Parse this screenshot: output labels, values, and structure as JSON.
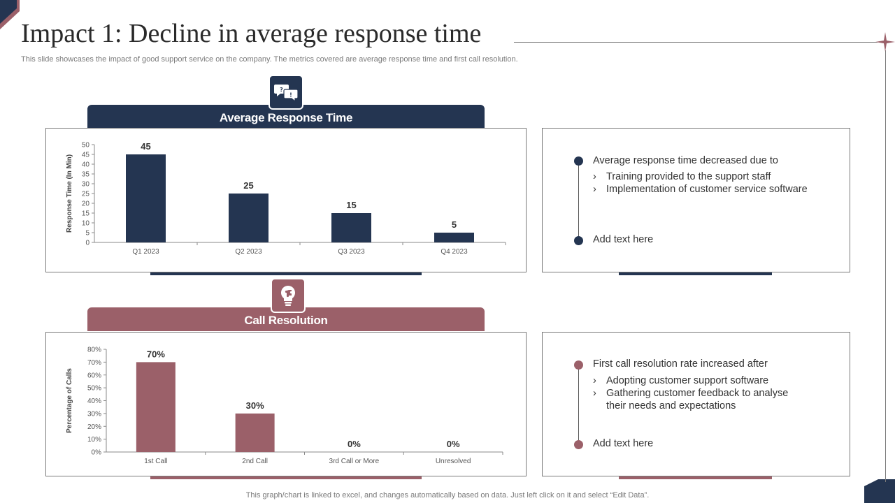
{
  "title": "Impact 1: Decline in average response time",
  "subtitle": "This slide showcases the impact of good support service on the company. The metrics covered are average response time and first call resolution.",
  "colors": {
    "navy": "#243551",
    "rose": "#9b6069",
    "text": "#333333",
    "muted": "#7a7a7a"
  },
  "sections": {
    "response": {
      "header": "Average Response Time",
      "icon": "chat-bubbles-icon",
      "bullets": {
        "main": "Average response time decreased due to",
        "subs": [
          "Training provided to the support staff",
          "Implementation of customer service software"
        ],
        "extra": "Add text here"
      }
    },
    "resolution": {
      "header": "Call Resolution",
      "icon": "lightbulb-puzzle-icon",
      "bullets": {
        "main": "First call resolution rate increased after",
        "subs": [
          "Adopting customer support software",
          "Gathering customer feedback to analyse their needs and expectations"
        ],
        "extra": "Add text here"
      }
    }
  },
  "chart_data": [
    {
      "type": "bar",
      "title": "Average Response Time",
      "categories": [
        "Q1 2023",
        "Q2 2023",
        "Q3 2023",
        "Q4 2023"
      ],
      "values": [
        45,
        25,
        15,
        5
      ],
      "data_labels": [
        "45",
        "25",
        "15",
        "5"
      ],
      "xlabel": "",
      "ylabel": "Response Time  (In Min)",
      "ylim": [
        0,
        50
      ],
      "yticks": [
        0,
        5,
        10,
        15,
        20,
        25,
        30,
        35,
        40,
        45,
        50
      ],
      "ytick_labels": [
        "0",
        "5",
        "10",
        "15",
        "20",
        "25",
        "30",
        "35",
        "40",
        "45",
        "50"
      ],
      "grid": false,
      "color": "#243551"
    },
    {
      "type": "bar",
      "title": "Call Resolution",
      "categories": [
        "1st Call",
        "2nd Call",
        "3rd Call or More",
        "Unresolved"
      ],
      "values": [
        70,
        30,
        0,
        0
      ],
      "data_labels": [
        "70%",
        "30%",
        "0%",
        "0%"
      ],
      "xlabel": "",
      "ylabel": "Percentage of Calls",
      "ylim": [
        0,
        80
      ],
      "yticks": [
        0,
        10,
        20,
        30,
        40,
        50,
        60,
        70,
        80
      ],
      "ytick_labels": [
        "0%",
        "10%",
        "20%",
        "30%",
        "40%",
        "50%",
        "60%",
        "70%",
        "80%"
      ],
      "grid": false,
      "color": "#9b6069"
    }
  ],
  "footer": "This graph/chart is linked to excel,  and changes automatically based on data. Just left click on it and select “Edit Data”."
}
